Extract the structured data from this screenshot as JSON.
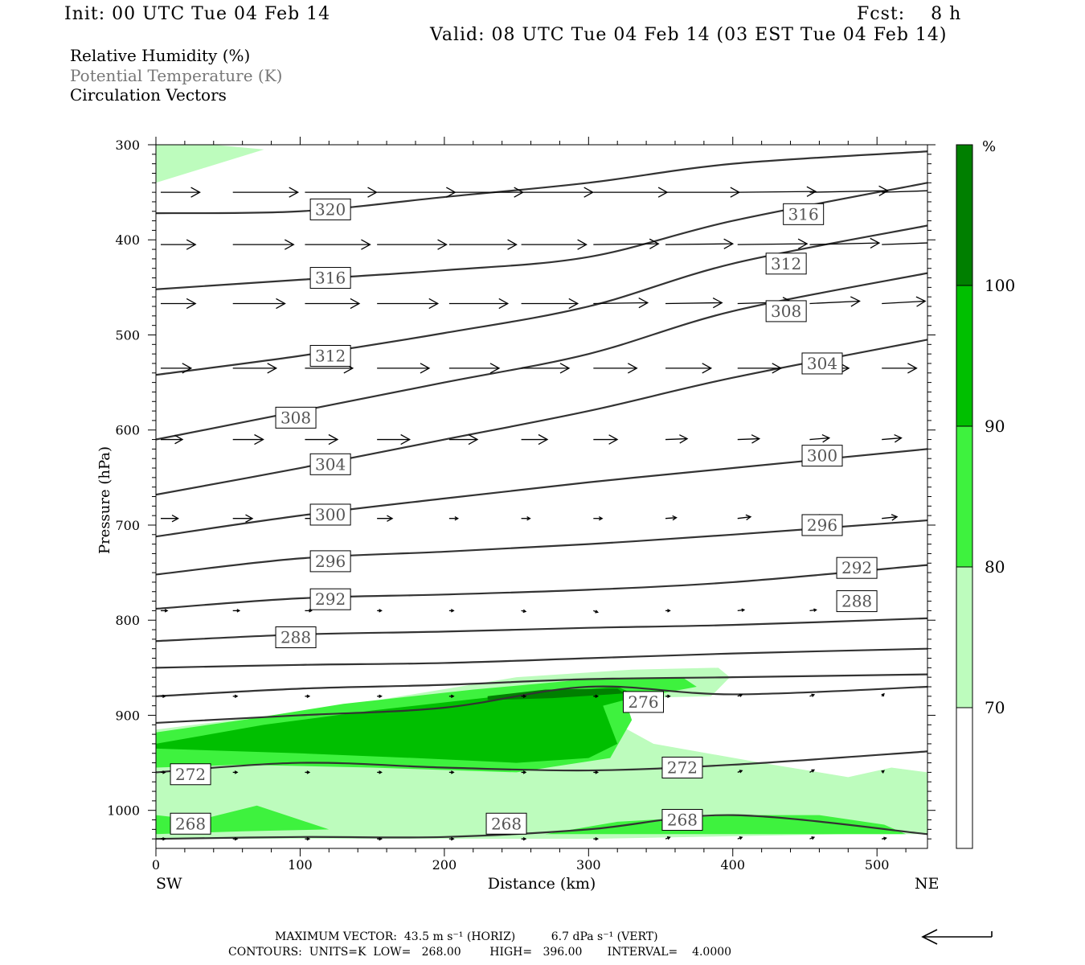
{
  "header": {
    "init": "Init: 00 UTC Tue 04 Feb 14",
    "fcst": "Fcst:    8 h",
    "valid": "Valid: 08 UTC Tue 04 Feb 14 (03 EST Tue 04 Feb 14)"
  },
  "legend": {
    "rh": "Relative Humidity (%)",
    "theta": "Potential Temperature (K)",
    "vectors": "Circulation Vectors"
  },
  "colors": {
    "rh70": "#bdfcbd",
    "rh80": "#3ef23e",
    "rh90": "#00bf00",
    "rh100": "#007f00",
    "contour": "#333333",
    "contour_label_text": "#555555"
  },
  "footer": {
    "max_vector": "MAXIMUM VECTOR:  43.5 m s⁻¹ (HORIZ)          6.7 dPa s⁻¹ (VERT)",
    "contours": "CONTOURS:  UNITS=K  LOW=   268.00        HIGH=   396.00       INTERVAL=    4.0000"
  },
  "chart_data": {
    "type": "cross-section",
    "xlabel": "Distance (km)",
    "ylabel": "Pressure (hPa)",
    "xlim": [
      0,
      535
    ],
    "ylim": [
      1040,
      300
    ],
    "x_ticks": [
      "0",
      "100",
      "200",
      "300",
      "400",
      "500"
    ],
    "x_end_labels": [
      "SW",
      "NE"
    ],
    "y_ticks": [
      "300",
      "400",
      "500",
      "600",
      "700",
      "800",
      "900",
      "1000"
    ],
    "colorbar": {
      "unit": "%",
      "levels": [
        "70",
        "80",
        "90",
        "100"
      ]
    },
    "theta_contours": [
      {
        "value": 320,
        "x": [
          0,
          100,
          200,
          300,
          400,
          535
        ],
        "p": [
          372,
          370,
          355,
          340,
          320,
          307
        ]
      },
      {
        "value": 316,
        "x": [
          0,
          100,
          200,
          300,
          400,
          535
        ],
        "p": [
          452,
          442,
          432,
          418,
          380,
          340
        ]
      },
      {
        "value": 312,
        "x": [
          0,
          100,
          200,
          300,
          400,
          535
        ],
        "p": [
          542,
          522,
          498,
          470,
          425,
          385
        ]
      },
      {
        "value": 308,
        "x": [
          0,
          100,
          200,
          300,
          400,
          535
        ],
        "p": [
          610,
          580,
          550,
          520,
          475,
          435
        ]
      },
      {
        "value": 304,
        "x": [
          0,
          100,
          200,
          300,
          400,
          535
        ],
        "p": [
          668,
          640,
          610,
          580,
          545,
          505
        ]
      },
      {
        "value": 300,
        "x": [
          0,
          100,
          200,
          300,
          400,
          535
        ],
        "p": [
          712,
          690,
          672,
          655,
          640,
          620
        ]
      },
      {
        "value": 296,
        "x": [
          0,
          100,
          200,
          300,
          400,
          535
        ],
        "p": [
          752,
          735,
          728,
          720,
          710,
          695
        ]
      },
      {
        "value": 292,
        "x": [
          0,
          100,
          200,
          300,
          400,
          535
        ],
        "p": [
          788,
          777,
          773,
          768,
          760,
          742
        ]
      },
      {
        "value": 288,
        "x": [
          0,
          100,
          200,
          300,
          400,
          535
        ],
        "p": [
          822,
          815,
          812,
          808,
          805,
          798
        ]
      },
      {
        "value": 284,
        "x": [
          0,
          100,
          200,
          300,
          400,
          535
        ],
        "p": [
          850,
          847,
          845,
          840,
          835,
          830
        ]
      },
      {
        "value": 280,
        "x": [
          0,
          100,
          200,
          300,
          400,
          535
        ],
        "p": [
          880,
          872,
          868,
          862,
          860,
          857
        ]
      },
      {
        "value": 276,
        "x": [
          0,
          100,
          200,
          300,
          400,
          535
        ],
        "p": [
          908,
          900,
          892,
          870,
          878,
          870
        ]
      },
      {
        "value": 272,
        "x": [
          0,
          100,
          200,
          300,
          400,
          535
        ],
        "p": [
          960,
          950,
          955,
          958,
          952,
          938
        ]
      },
      {
        "value": 268,
        "x": [
          0,
          100,
          200,
          300,
          400,
          535
        ],
        "p": [
          1030,
          1028,
          1028,
          1020,
          1005,
          1025
        ]
      }
    ],
    "contour_labels": [
      {
        "value": "320",
        "x": 121,
        "p": 368
      },
      {
        "value": "316",
        "x": 449,
        "p": 373
      },
      {
        "value": "316",
        "x": 121,
        "p": 440
      },
      {
        "value": "312",
        "x": 437,
        "p": 425
      },
      {
        "value": "308",
        "x": 437,
        "p": 475
      },
      {
        "value": "312",
        "x": 121,
        "p": 522
      },
      {
        "value": "304",
        "x": 462,
        "p": 530
      },
      {
        "value": "308",
        "x": 97,
        "p": 587
      },
      {
        "value": "304",
        "x": 121,
        "p": 636
      },
      {
        "value": "300",
        "x": 462,
        "p": 627
      },
      {
        "value": "300",
        "x": 121,
        "p": 689
      },
      {
        "value": "296",
        "x": 462,
        "p": 700
      },
      {
        "value": "296",
        "x": 121,
        "p": 738
      },
      {
        "value": "292",
        "x": 486,
        "p": 745
      },
      {
        "value": "292",
        "x": 121,
        "p": 778
      },
      {
        "value": "288",
        "x": 486,
        "p": 780
      },
      {
        "value": "288",
        "x": 97,
        "p": 818
      },
      {
        "value": "276",
        "x": 338,
        "p": 886
      },
      {
        "value": "272",
        "x": 24,
        "p": 962
      },
      {
        "value": "272",
        "x": 365,
        "p": 955
      },
      {
        "value": "268",
        "x": 24,
        "p": 1014
      },
      {
        "value": "268",
        "x": 243,
        "p": 1014
      },
      {
        "value": "268",
        "x": 365,
        "p": 1010
      }
    ],
    "rh_regions": [
      {
        "level": 70,
        "x": [
          0,
          40,
          75,
          0
        ],
        "p": [
          300,
          300,
          305,
          340
        ]
      },
      {
        "level": 70,
        "x": [
          0,
          80,
          150,
          250,
          330,
          390,
          398,
          385,
          330,
          315,
          345,
          420,
          480,
          510,
          535,
          535,
          480,
          300,
          100,
          0
        ],
        "p": [
          915,
          900,
          885,
          860,
          852,
          850,
          860,
          880,
          882,
          905,
          930,
          950,
          965,
          955,
          960,
          1025,
          1025,
          1030,
          1030,
          1030
        ]
      },
      {
        "level": 80,
        "x": [
          0,
          60,
          130,
          220,
          300,
          365,
          375,
          340,
          325,
          330,
          315,
          250,
          150,
          60,
          0
        ],
        "p": [
          918,
          905,
          888,
          873,
          862,
          860,
          870,
          880,
          882,
          905,
          945,
          960,
          955,
          952,
          955
        ]
      },
      {
        "level": 80,
        "x": [
          0,
          30,
          70,
          120,
          60,
          0
        ],
        "p": [
          1005,
          1010,
          995,
          1020,
          1022,
          1025
        ]
      },
      {
        "level": 80,
        "x": [
          270,
          320,
          400,
          460,
          505,
          520,
          470,
          320,
          270
        ],
        "p": [
          1025,
          1012,
          1005,
          1005,
          1015,
          1025,
          1025,
          1025,
          1025
        ]
      },
      {
        "level": 90,
        "x": [
          0,
          75,
          150,
          250,
          320,
          335,
          310,
          320,
          300,
          250,
          180,
          100,
          0
        ],
        "p": [
          930,
          910,
          895,
          878,
          870,
          880,
          890,
          930,
          945,
          950,
          945,
          940,
          935
        ]
      },
      {
        "level": 100,
        "x": [
          230,
          270,
          320,
          325,
          275,
          230
        ],
        "p": [
          880,
          873,
          872,
          877,
          882,
          884
        ]
      }
    ],
    "vector_rows": [
      {
        "p": 350,
        "x": [
          0,
          50,
          100,
          150,
          200,
          250,
          300,
          350,
          400,
          450,
          500
        ],
        "u": [
          0.18,
          0.3,
          0.33,
          0.36,
          0.34,
          0.33,
          0.34,
          0.34,
          0.36,
          0.36,
          0.33
        ],
        "w": [
          0,
          0,
          0,
          0,
          0,
          0,
          0,
          0,
          -1,
          -2,
          -3
        ]
      },
      {
        "p": 405,
        "x": [
          0,
          50,
          100,
          150,
          200,
          250,
          300,
          350,
          400,
          450,
          500
        ],
        "u": [
          0.16,
          0.28,
          0.3,
          0.32,
          0.31,
          0.3,
          0.3,
          0.31,
          0.32,
          0.32,
          0.3
        ],
        "w": [
          0,
          0,
          0,
          0,
          0,
          0,
          -1,
          -1,
          -1,
          -2,
          -3
        ]
      },
      {
        "p": 467,
        "x": [
          0,
          50,
          100,
          150,
          200,
          250,
          300,
          350,
          400,
          450,
          500
        ],
        "u": [
          0.16,
          0.24,
          0.25,
          0.28,
          0.27,
          0.26,
          0.25,
          0.26,
          0.25,
          0.23,
          0.2
        ],
        "w": [
          0,
          0,
          0,
          0,
          0,
          0,
          -1,
          -1,
          -2,
          -3,
          -3
        ]
      },
      {
        "p": 535,
        "x": [
          0,
          50,
          100,
          150,
          200,
          250,
          300,
          350,
          400,
          450,
          500
        ],
        "u": [
          0.14,
          0.2,
          0.22,
          0.24,
          0.23,
          0.22,
          0.2,
          0.21,
          0.2,
          0.18,
          0.16
        ],
        "w": [
          0,
          0,
          0,
          0,
          0,
          0,
          0,
          0,
          0,
          0,
          0
        ]
      },
      {
        "p": 610,
        "x": [
          0,
          50,
          100,
          150,
          200,
          250,
          300,
          350,
          400,
          450,
          500
        ],
        "u": [
          0.1,
          0.14,
          0.15,
          0.15,
          0.13,
          0.12,
          0.11,
          0.1,
          0.1,
          0.09,
          0.09
        ],
        "w": [
          0,
          0,
          0,
          0,
          0,
          0,
          0,
          -1,
          -1,
          -2,
          -2
        ]
      },
      {
        "p": 693,
        "x": [
          0,
          50,
          100,
          150,
          200,
          250,
          300,
          350,
          400,
          450,
          500
        ],
        "u": [
          0.08,
          0.09,
          0.09,
          0.07,
          0.04,
          0.04,
          0.04,
          0.05,
          0.06,
          0.07,
          0.07
        ],
        "w": [
          0,
          0,
          0,
          0,
          0,
          0,
          0,
          -1,
          -2,
          -2,
          -2
        ]
      },
      {
        "p": 790,
        "x": [
          0,
          50,
          100,
          150,
          200,
          250,
          300,
          350,
          400,
          450
        ],
        "u": [
          0.03,
          0.03,
          0.03,
          0.02,
          0.02,
          0.02,
          0.02,
          0.02,
          0.03,
          0.03
        ],
        "w": [
          0,
          0,
          0,
          0,
          0,
          1,
          2,
          0,
          -1,
          -1
        ]
      },
      {
        "p": 880,
        "x": [
          0,
          50,
          100,
          150,
          200,
          250,
          300,
          350,
          400,
          450,
          500
        ],
        "u": [
          0.02,
          0.02,
          0.02,
          0.02,
          0.02,
          0.02,
          0.02,
          0.02,
          0.02,
          0.02,
          0.01
        ],
        "w": [
          0,
          0,
          0,
          0,
          0,
          0,
          0,
          0,
          -2,
          -2,
          -3
        ]
      },
      {
        "p": 960,
        "x": [
          0,
          50,
          100,
          150,
          200,
          250,
          300,
          350,
          400,
          450,
          500
        ],
        "u": [
          0.02,
          0.02,
          0.02,
          0.02,
          0.02,
          0.02,
          0.02,
          0.02,
          0.02,
          0.02,
          0.01
        ],
        "w": [
          0,
          0,
          0,
          0,
          0,
          0,
          0,
          0,
          -2,
          -3,
          -2
        ]
      },
      {
        "p": 1030,
        "x": [
          0,
          50,
          100,
          150,
          200,
          250,
          300,
          350,
          400,
          450,
          500
        ],
        "u": [
          0.02,
          0.02,
          0.02,
          0.02,
          0.02,
          0.02,
          0.02,
          0.02,
          0.02,
          0.02,
          0.02
        ],
        "w": [
          0,
          0,
          0,
          0,
          0,
          0,
          0,
          -2,
          -2,
          -2,
          -1
        ]
      }
    ]
  }
}
